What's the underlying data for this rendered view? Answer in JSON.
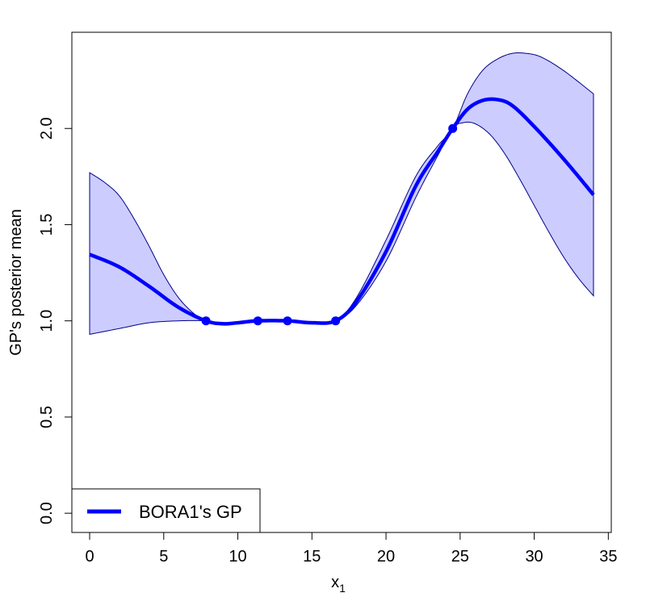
{
  "chart_data": {
    "type": "line",
    "xlabel": "x",
    "xlabel_subscript": "1",
    "ylabel": "GP's posterior mean",
    "xlim": [
      -1.2,
      35.2
    ],
    "ylim": [
      -0.1,
      2.5
    ],
    "x_ticks": [
      0,
      5,
      10,
      15,
      20,
      25,
      30,
      35
    ],
    "x_tick_labels": [
      "0",
      "5",
      "10",
      "15",
      "20",
      "25",
      "30",
      "35"
    ],
    "y_ticks": [
      0.0,
      0.5,
      1.0,
      1.5,
      2.0
    ],
    "y_tick_labels": [
      "0.0",
      "0.5",
      "1.0",
      "1.5",
      "2.0"
    ],
    "grid": false,
    "legend_position": "bottom-left",
    "series": [
      {
        "name": "BORA1's GP",
        "color": "#0000ff",
        "band_fill": "#ccccff",
        "band_stroke": "#00008b",
        "mean": {
          "x": [
            0,
            2,
            4,
            6,
            7.85,
            9,
            10,
            11.35,
            13.35,
            15,
            16.6,
            18,
            20,
            22,
            23.5,
            24.5,
            25.5,
            26.5,
            27.5,
            28.5,
            30,
            32,
            34
          ],
          "y": [
            1.345,
            1.28,
            1.18,
            1.07,
            1.0,
            0.985,
            0.99,
            1.0,
            1.0,
            0.99,
            1.0,
            1.1,
            1.36,
            1.7,
            1.88,
            2.0,
            2.1,
            2.145,
            2.15,
            2.12,
            2.01,
            1.84,
            1.655
          ]
        },
        "upper": {
          "x": [
            0,
            1,
            2,
            3,
            4,
            5,
            6,
            7,
            7.85,
            9,
            10,
            11.35,
            13.35,
            15,
            16.6,
            18,
            20,
            22,
            23.5,
            24.5,
            25.5,
            26.5,
            27.5,
            28.5,
            29.5,
            30.5,
            32,
            34
          ],
          "y": [
            1.77,
            1.72,
            1.65,
            1.53,
            1.39,
            1.24,
            1.12,
            1.04,
            1.0,
            0.99,
            0.99,
            1.0,
            1.0,
            0.99,
            1.0,
            1.12,
            1.42,
            1.75,
            1.91,
            2.0,
            2.18,
            2.3,
            2.36,
            2.39,
            2.39,
            2.37,
            2.3,
            2.18
          ]
        },
        "lower": {
          "x": [
            0,
            2,
            4,
            6,
            7.85,
            9,
            10,
            11.35,
            13.35,
            15,
            16.6,
            18,
            20,
            22,
            23.5,
            24.5,
            25.2,
            26,
            27,
            28,
            29,
            30,
            31,
            32,
            33,
            34
          ],
          "y": [
            0.93,
            0.96,
            0.99,
            1.0,
            1.0,
            0.985,
            0.99,
            1.0,
            1.0,
            0.99,
            1.0,
            1.08,
            1.31,
            1.64,
            1.86,
            2.0,
            2.03,
            2.025,
            1.97,
            1.87,
            1.74,
            1.6,
            1.46,
            1.33,
            1.22,
            1.13
          ]
        },
        "observations": {
          "x": [
            7.85,
            11.35,
            13.35,
            16.6,
            24.5
          ],
          "y": [
            1.0,
            1.0,
            1.0,
            1.0,
            2.0
          ]
        }
      }
    ]
  }
}
